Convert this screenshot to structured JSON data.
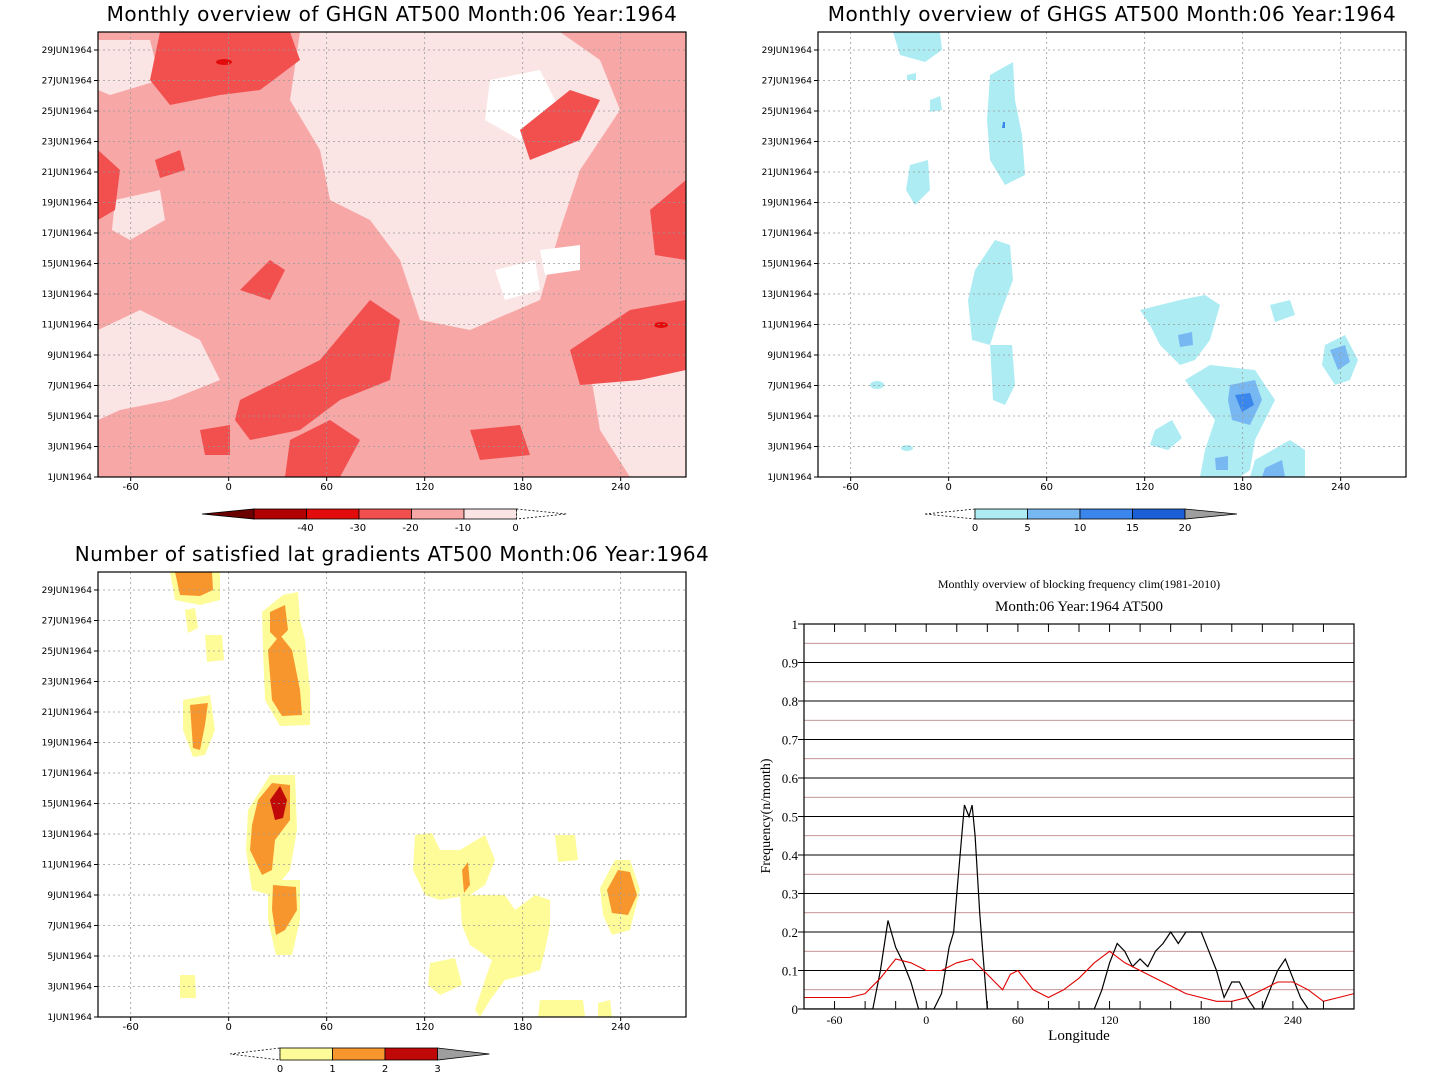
{
  "chart_data": [
    {
      "type": "heatmap",
      "title": "Monthly overview of GHGN AT500 Month:06 Year:1964",
      "x_tick_labels": [
        "-60",
        "0",
        "60",
        "120",
        "180",
        "240"
      ],
      "x_ticks": [
        -60,
        0,
        60,
        120,
        180,
        240
      ],
      "xlim": [
        -80,
        280
      ],
      "y_tick_labels": [
        "1JUN1964",
        "3JUN1964",
        "5JUN1964",
        "7JUN1964",
        "9JUN1964",
        "11JUN1964",
        "13JUN1964",
        "15JUN1964",
        "17JUN1964",
        "19JUN1964",
        "21JUN1964",
        "23JUN1964",
        "25JUN1964",
        "27JUN1964",
        "29JUN1964"
      ],
      "colorbar": {
        "labels": [
          "-40",
          "-30",
          "-20",
          "-10",
          "0"
        ],
        "colors": [
          "#fbe4e4",
          "#f8a7a7",
          "#f24f4f",
          "#e30c0c",
          "#b10000",
          "#6b0000"
        ]
      },
      "grid": true
    },
    {
      "type": "heatmap",
      "title": "Monthly overview of GHGS AT500 Month:06 Year:1964",
      "x_tick_labels": [
        "-60",
        "0",
        "60",
        "120",
        "180",
        "240"
      ],
      "x_ticks": [
        -60,
        0,
        60,
        120,
        180,
        240
      ],
      "xlim": [
        -80,
        280
      ],
      "y_tick_labels": [
        "1JUN1964",
        "3JUN1964",
        "5JUN1964",
        "7JUN1964",
        "9JUN1964",
        "11JUN1964",
        "13JUN1964",
        "15JUN1964",
        "17JUN1964",
        "19JUN1964",
        "21JUN1964",
        "23JUN1964",
        "25JUN1964",
        "27JUN1964",
        "29JUN1964"
      ],
      "colorbar": {
        "labels": [
          "0",
          "5",
          "10",
          "15",
          "20"
        ],
        "colors": [
          "#aeecf4",
          "#78b8f2",
          "#3b86ec",
          "#1a5fd6",
          "#9e9e9e"
        ]
      },
      "grid": true
    },
    {
      "type": "heatmap",
      "title": "Number of satisfied lat gradients AT500 Month:06 Year:1964",
      "x_tick_labels": [
        "-60",
        "0",
        "60",
        "120",
        "180",
        "240"
      ],
      "x_ticks": [
        -60,
        0,
        60,
        120,
        180,
        240
      ],
      "xlim": [
        -80,
        280
      ],
      "y_tick_labels": [
        "1JUN1964",
        "3JUN1964",
        "5JUN1964",
        "7JUN1964",
        "9JUN1964",
        "11JUN1964",
        "13JUN1964",
        "15JUN1964",
        "17JUN1964",
        "19JUN1964",
        "21JUN1964",
        "23JUN1964",
        "25JUN1964",
        "27JUN1964",
        "29JUN1964"
      ],
      "colorbar": {
        "labels": [
          "0",
          "1",
          "2",
          "3"
        ],
        "colors": [
          "#fefc98",
          "#f8962e",
          "#c10808",
          "#9e9e9e"
        ]
      },
      "grid": true
    },
    {
      "type": "line",
      "title": "Monthly overview of blocking frequency clim(1981-2010)",
      "subtitle": "Month:06 Year:1964  AT500",
      "xlabel": "Longitude",
      "ylabel": "Frequency(n/month)",
      "xlim": [
        -80,
        280
      ],
      "ylim": [
        0,
        1
      ],
      "x_tick_labels": [
        "-60",
        "0",
        "60",
        "120",
        "180",
        "240"
      ],
      "x_ticks": [
        -60,
        0,
        60,
        120,
        180,
        240
      ],
      "y_tick_labels": [
        "0",
        "0.1",
        "0.2",
        "0.3",
        "0.4",
        "0.5",
        "0.6",
        "0.7",
        "0.8",
        "0.9",
        "1"
      ],
      "y_ticks": [
        0,
        0.1,
        0.2,
        0.3,
        0.4,
        0.5,
        0.6,
        0.7,
        0.8,
        0.9,
        1
      ],
      "grid": true,
      "series": [
        {
          "color": "#000000",
          "x": [
            -80,
            -70,
            -60,
            -50,
            -40,
            -35,
            -30,
            -25,
            -20,
            -15,
            -10,
            -5,
            0,
            5,
            10,
            15,
            18,
            20,
            25,
            28,
            30,
            32,
            35,
            40,
            45,
            50,
            60,
            70,
            80,
            90,
            100,
            110,
            115,
            120,
            125,
            130,
            135,
            140,
            145,
            150,
            155,
            160,
            165,
            170,
            175,
            180,
            185,
            190,
            195,
            200,
            205,
            210,
            215,
            220,
            225,
            230,
            235,
            240,
            245,
            250,
            260,
            270,
            280
          ],
          "y": [
            0,
            0,
            0,
            0,
            0,
            0,
            0.1,
            0.23,
            0.16,
            0.12,
            0.07,
            0,
            0,
            0,
            0.04,
            0.16,
            0.2,
            0.3,
            0.53,
            0.5,
            0.53,
            0.45,
            0.25,
            0,
            0,
            0,
            0,
            0,
            0,
            0,
            0,
            0,
            0.05,
            0.12,
            0.17,
            0.15,
            0.11,
            0.13,
            0.11,
            0.15,
            0.17,
            0.2,
            0.17,
            0.2,
            0.2,
            0.2,
            0.15,
            0.1,
            0.03,
            0.07,
            0.07,
            0.03,
            0,
            0,
            0.05,
            0.1,
            0.13,
            0.08,
            0.03,
            0,
            0,
            0,
            0
          ]
        },
        {
          "color": "#e00000",
          "x": [
            -80,
            -70,
            -60,
            -50,
            -40,
            -30,
            -20,
            -10,
            0,
            10,
            20,
            30,
            35,
            40,
            50,
            55,
            60,
            70,
            80,
            90,
            100,
            110,
            120,
            130,
            140,
            150,
            160,
            170,
            180,
            190,
            200,
            210,
            220,
            230,
            240,
            250,
            260,
            270,
            280
          ],
          "y": [
            0.03,
            0.03,
            0.03,
            0.03,
            0.04,
            0.08,
            0.13,
            0.12,
            0.1,
            0.1,
            0.12,
            0.13,
            0.11,
            0.09,
            0.05,
            0.09,
            0.1,
            0.05,
            0.03,
            0.05,
            0.08,
            0.12,
            0.15,
            0.12,
            0.1,
            0.08,
            0.06,
            0.04,
            0.03,
            0.02,
            0.02,
            0.03,
            0.05,
            0.07,
            0.07,
            0.05,
            0.02,
            0.03,
            0.04
          ]
        }
      ]
    }
  ]
}
